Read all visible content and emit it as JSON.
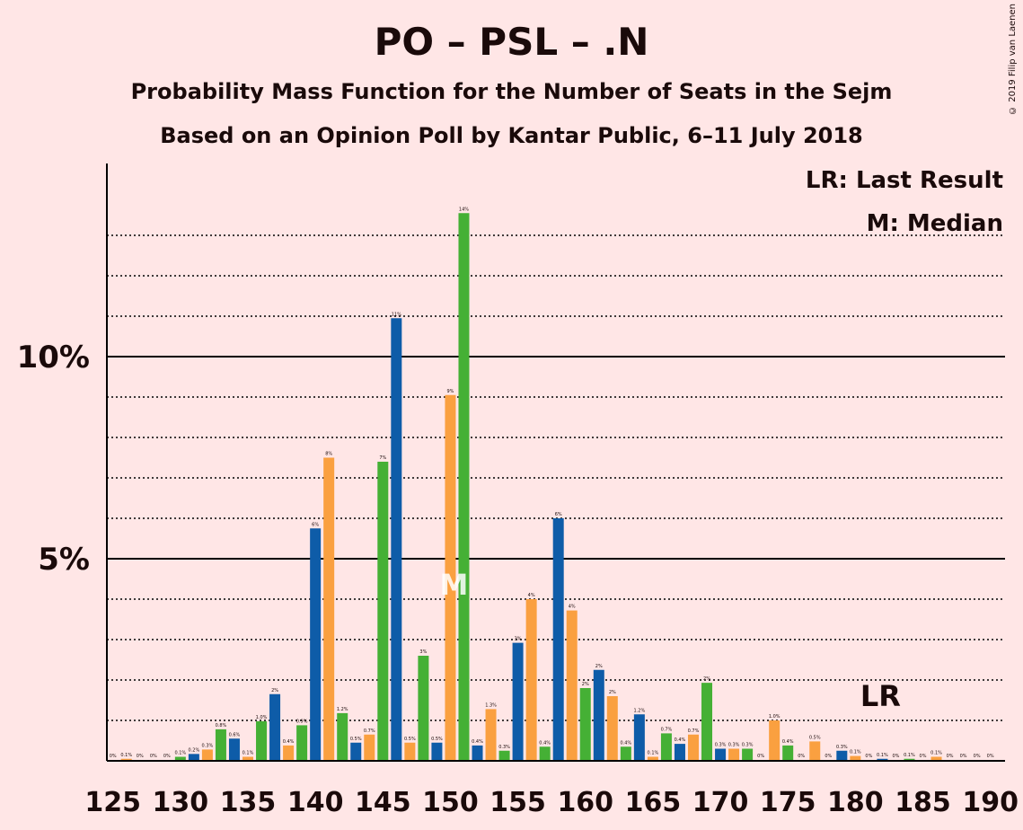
{
  "title": "PO – PSL – .N",
  "subtitle1": "Probability Mass Function for the Number of Seats in the Sejm",
  "subtitle2": "Based on an Opinion Poll by Kantar Public, 6–11 July 2018",
  "copyright": "© 2019 Filip van Laenen",
  "colors": {
    "background": "#FFE6E6",
    "blue": "#0E5CA8",
    "orange": "#FAA040",
    "green": "#45B035"
  },
  "chart_data": {
    "type": "bar",
    "title": "PO – PSL – .N",
    "x_range": [
      125,
      190
    ],
    "x_ticks": [
      "125",
      "130",
      "135",
      "140",
      "145",
      "150",
      "155",
      "160",
      "165",
      "170",
      "175",
      "180",
      "185",
      "190"
    ],
    "y_ticks": [
      {
        "value": 5,
        "label": "5%"
      },
      {
        "value": 10,
        "label": "10%"
      }
    ],
    "ylim": [
      0,
      15
    ],
    "legend": [
      "LR: Last Result",
      "M: Median"
    ],
    "legend_position": "top-right",
    "median": 150,
    "last_result": 182,
    "median_label": "M",
    "last_result_label": "LR",
    "seats": [
      {
        "x": 125,
        "v": 0.02,
        "label": "0%",
        "color": "blue"
      },
      {
        "x": 126,
        "v": 0.05,
        "label": "0.1%",
        "color": "orange"
      },
      {
        "x": 127,
        "v": 0.02,
        "label": "0%",
        "color": "green"
      },
      {
        "x": 128,
        "v": 0.02,
        "label": "0%",
        "color": "blue"
      },
      {
        "x": 129,
        "v": 0.02,
        "label": "0%",
        "color": "orange"
      },
      {
        "x": 130,
        "v": 0.1,
        "label": "0.1%",
        "color": "green"
      },
      {
        "x": 131,
        "v": 0.17,
        "label": "0.2%",
        "color": "blue"
      },
      {
        "x": 132,
        "v": 0.28,
        "label": "0.3%",
        "color": "orange"
      },
      {
        "x": 133,
        "v": 0.78,
        "label": "0.8%",
        "color": "green"
      },
      {
        "x": 134,
        "v": 0.55,
        "label": "0.6%",
        "color": "blue"
      },
      {
        "x": 135,
        "v": 0.1,
        "label": "0.1%",
        "color": "orange"
      },
      {
        "x": 136,
        "v": 0.98,
        "label": "1.0%",
        "color": "green"
      },
      {
        "x": 137,
        "v": 1.65,
        "label": "2%",
        "color": "blue"
      },
      {
        "x": 138,
        "v": 0.38,
        "label": "0.4%",
        "color": "orange"
      },
      {
        "x": 139,
        "v": 0.88,
        "label": "0.9%",
        "color": "green"
      },
      {
        "x": 140,
        "v": 5.75,
        "label": "6%",
        "color": "blue"
      },
      {
        "x": 141,
        "v": 7.5,
        "label": "8%",
        "color": "orange"
      },
      {
        "x": 142,
        "v": 1.18,
        "label": "1.2%",
        "color": "green"
      },
      {
        "x": 143,
        "v": 0.45,
        "label": "0.5%",
        "color": "blue"
      },
      {
        "x": 144,
        "v": 0.65,
        "label": "0.7%",
        "color": "orange"
      },
      {
        "x": 145,
        "v": 7.4,
        "label": "7%",
        "color": "green"
      },
      {
        "x": 146,
        "v": 10.95,
        "label": "11%",
        "color": "blue"
      },
      {
        "x": 147,
        "v": 0.45,
        "label": "0.5%",
        "color": "orange"
      },
      {
        "x": 148,
        "v": 2.6,
        "label": "3%",
        "color": "green"
      },
      {
        "x": 149,
        "v": 0.45,
        "label": "0.5%",
        "color": "blue"
      },
      {
        "x": 150,
        "v": 9.05,
        "label": "9%",
        "color": "orange"
      },
      {
        "x": 151,
        "v": 13.55,
        "label": "14%",
        "color": "green"
      },
      {
        "x": 152,
        "v": 0.38,
        "label": "0.4%",
        "color": "blue"
      },
      {
        "x": 153,
        "v": 1.28,
        "label": "1.3%",
        "color": "orange"
      },
      {
        "x": 154,
        "v": 0.25,
        "label": "0.3%",
        "color": "green"
      },
      {
        "x": 155,
        "v": 2.92,
        "label": "3%",
        "color": "blue"
      },
      {
        "x": 156,
        "v": 4.0,
        "label": "4%",
        "color": "orange"
      },
      {
        "x": 157,
        "v": 0.35,
        "label": "0.4%",
        "color": "green"
      },
      {
        "x": 158,
        "v": 6.0,
        "label": "6%",
        "color": "blue"
      },
      {
        "x": 159,
        "v": 3.72,
        "label": "4%",
        "color": "orange"
      },
      {
        "x": 160,
        "v": 1.8,
        "label": "2%",
        "color": "green"
      },
      {
        "x": 161,
        "v": 2.25,
        "label": "2%",
        "color": "blue"
      },
      {
        "x": 162,
        "v": 1.6,
        "label": "2%",
        "color": "orange"
      },
      {
        "x": 163,
        "v": 0.35,
        "label": "0.4%",
        "color": "green"
      },
      {
        "x": 164,
        "v": 1.15,
        "label": "1.2%",
        "color": "blue"
      },
      {
        "x": 165,
        "v": 0.1,
        "label": "0.1%",
        "color": "orange"
      },
      {
        "x": 166,
        "v": 0.68,
        "label": "0.7%",
        "color": "green"
      },
      {
        "x": 167,
        "v": 0.42,
        "label": "0.4%",
        "color": "blue"
      },
      {
        "x": 168,
        "v": 0.65,
        "label": "0.7%",
        "color": "orange"
      },
      {
        "x": 169,
        "v": 1.93,
        "label": "2%",
        "color": "green"
      },
      {
        "x": 170,
        "v": 0.3,
        "label": "0.3%",
        "color": "blue"
      },
      {
        "x": 171,
        "v": 0.3,
        "label": "0.3%",
        "color": "orange"
      },
      {
        "x": 172,
        "v": 0.3,
        "label": "0.3%",
        "color": "green"
      },
      {
        "x": 173,
        "v": 0.02,
        "label": "0%",
        "color": "blue"
      },
      {
        "x": 174,
        "v": 1.0,
        "label": "1.0%",
        "color": "orange"
      },
      {
        "x": 175,
        "v": 0.38,
        "label": "0.4%",
        "color": "green"
      },
      {
        "x": 176,
        "v": 0.02,
        "label": "0%",
        "color": "blue"
      },
      {
        "x": 177,
        "v": 0.48,
        "label": "0.5%",
        "color": "orange"
      },
      {
        "x": 178,
        "v": 0.02,
        "label": "0%",
        "color": "green"
      },
      {
        "x": 179,
        "v": 0.25,
        "label": "0.3%",
        "color": "blue"
      },
      {
        "x": 180,
        "v": 0.12,
        "label": "0.1%",
        "color": "orange"
      },
      {
        "x": 181,
        "v": 0.02,
        "label": "0%",
        "color": "green"
      },
      {
        "x": 182,
        "v": 0.05,
        "label": "0.1%",
        "color": "blue"
      },
      {
        "x": 183,
        "v": 0.02,
        "label": "0%",
        "color": "orange"
      },
      {
        "x": 184,
        "v": 0.05,
        "label": "0.1%",
        "color": "green"
      },
      {
        "x": 185,
        "v": 0.02,
        "label": "0%",
        "color": "blue"
      },
      {
        "x": 186,
        "v": 0.1,
        "label": "0.1%",
        "color": "orange"
      },
      {
        "x": 187,
        "v": 0.02,
        "label": "0%",
        "color": "green"
      },
      {
        "x": 188,
        "v": 0.02,
        "label": "0%",
        "color": "blue"
      },
      {
        "x": 189,
        "v": 0.02,
        "label": "0%",
        "color": "orange"
      },
      {
        "x": 190,
        "v": 0.02,
        "label": "0%",
        "color": "green"
      }
    ]
  }
}
